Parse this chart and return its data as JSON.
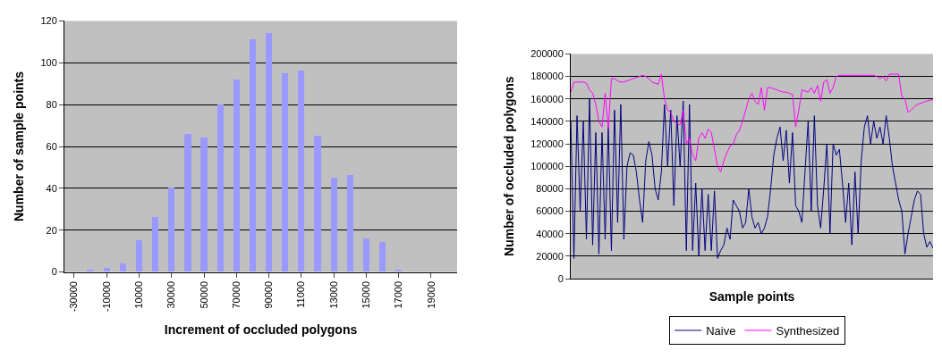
{
  "chart_data": [
    {
      "type": "bar",
      "xlabel": "Increment of occluded polygons",
      "ylabel": "Number of sample points",
      "categories": [
        "-30000",
        null,
        "-10000",
        null,
        "10000",
        null,
        "30000",
        null,
        "50000",
        null,
        "70000",
        null,
        "90000",
        null,
        "11000",
        null,
        "13000",
        null,
        "15000",
        null,
        "17000",
        null,
        "19000",
        null
      ],
      "values": [
        0,
        1,
        2,
        4,
        15,
        26,
        40,
        66,
        64,
        80,
        92,
        111,
        114,
        95,
        96,
        65,
        45,
        46,
        16,
        14,
        1,
        0,
        0,
        0
      ],
      "color": "#9999ff",
      "ylim": [
        0,
        120
      ],
      "yticks": [
        0,
        20,
        40,
        60,
        80,
        100,
        120
      ],
      "grid": "y"
    },
    {
      "type": "line",
      "xlabel": "Sample points",
      "ylabel": "Number of occluded polygons",
      "categories": [
        null,
        null,
        null,
        null,
        null,
        null,
        null,
        null,
        null,
        null,
        null,
        null,
        null,
        null,
        null,
        null,
        null,
        null,
        null,
        null,
        null,
        null,
        null,
        null,
        null,
        null,
        null,
        null,
        null,
        null,
        null,
        null,
        null,
        null,
        null,
        null,
        null,
        null,
        null,
        null,
        null,
        null,
        null,
        null,
        null,
        null,
        null,
        null,
        null,
        null,
        null,
        null,
        null,
        null,
        null,
        null,
        null,
        null,
        null,
        null,
        null,
        null,
        null,
        null,
        null,
        null,
        null,
        null,
        null,
        null,
        null,
        null,
        null,
        null,
        null,
        null,
        null,
        null,
        null,
        null,
        null,
        null,
        null,
        null,
        null,
        null,
        null,
        null,
        null,
        null,
        null,
        null,
        null,
        null,
        null,
        null,
        null,
        null,
        null,
        null,
        null,
        null,
        null,
        null,
        null,
        null,
        null,
        null,
        null,
        null,
        null,
        null,
        null,
        null,
        null,
        null,
        null
      ],
      "series": [
        {
          "name": "Naive",
          "color": "#000080",
          "values": [
            140000,
            18000,
            145000,
            60000,
            140000,
            35000,
            160000,
            30000,
            130000,
            22000,
            130000,
            35000,
            135000,
            25000,
            150000,
            50000,
            155000,
            35000,
            100000,
            112000,
            110000,
            95000,
            70000,
            50000,
            105000,
            122000,
            110000,
            80000,
            70000,
            95000,
            155000,
            100000,
            150000,
            65000,
            145000,
            100000,
            158000,
            25000,
            155000,
            25000,
            85000,
            20000,
            80000,
            25000,
            75000,
            25000,
            78000,
            18000,
            25000,
            30000,
            45000,
            35000,
            70000,
            65000,
            60000,
            45000,
            50000,
            80000,
            55000,
            45000,
            50000,
            40000,
            45000,
            55000,
            80000,
            110000,
            125000,
            135000,
            105000,
            132000,
            85000,
            130000,
            65000,
            60000,
            50000,
            95000,
            140000,
            60000,
            145000,
            65000,
            45000,
            80000,
            120000,
            40000,
            120000,
            110000,
            115000,
            85000,
            50000,
            85000,
            30000,
            95000,
            40000,
            105000,
            135000,
            145000,
            120000,
            140000,
            125000,
            135000,
            120000,
            145000,
            125000,
            100000,
            85000,
            70000,
            60000,
            22000,
            40000,
            55000,
            70000,
            78000,
            75000,
            40000,
            28000,
            33000,
            27000
          ]
        },
        {
          "name": "Synthesized",
          "color": "#ff00ff",
          "values": [
            166000,
            175000,
            175000,
            175000,
            175000,
            174000,
            168000,
            165000,
            155000,
            140000,
            135000,
            165000,
            133000,
            178000,
            178000,
            176000,
            175000,
            175000,
            176000,
            177000,
            178000,
            179000,
            180000,
            181000,
            180000,
            178000,
            175000,
            174000,
            173000,
            182000,
            160000,
            150000,
            148000,
            140000,
            138000,
            137000,
            150000,
            120000,
            125000,
            110000,
            105000,
            125000,
            130000,
            125000,
            133000,
            130000,
            115000,
            100000,
            95000,
            105000,
            112000,
            118000,
            120000,
            128000,
            132000,
            140000,
            150000,
            160000,
            165000,
            158000,
            155000,
            170000,
            150000,
            170000,
            170000,
            169000,
            168000,
            167000,
            166000,
            166000,
            165000,
            164000,
            135000,
            150000,
            168000,
            167000,
            166000,
            170000,
            165000,
            172000,
            158000,
            175000,
            177000,
            165000,
            170000,
            180000,
            181000,
            181000,
            181000,
            181000,
            181000,
            181000,
            181000,
            181000,
            181000,
            181000,
            181000,
            181000,
            180000,
            178000,
            180000,
            176000,
            182000,
            182000,
            182000,
            182000,
            162000,
            160000,
            148000,
            150000,
            153000,
            155000,
            156000,
            157000,
            158000,
            159000,
            159000
          ]
        }
      ],
      "ylim": [
        0,
        200000
      ],
      "yticks": [
        0,
        20000,
        40000,
        60000,
        80000,
        100000,
        120000,
        140000,
        160000,
        180000,
        200000
      ],
      "grid": "y",
      "legend": "bottom"
    }
  ]
}
